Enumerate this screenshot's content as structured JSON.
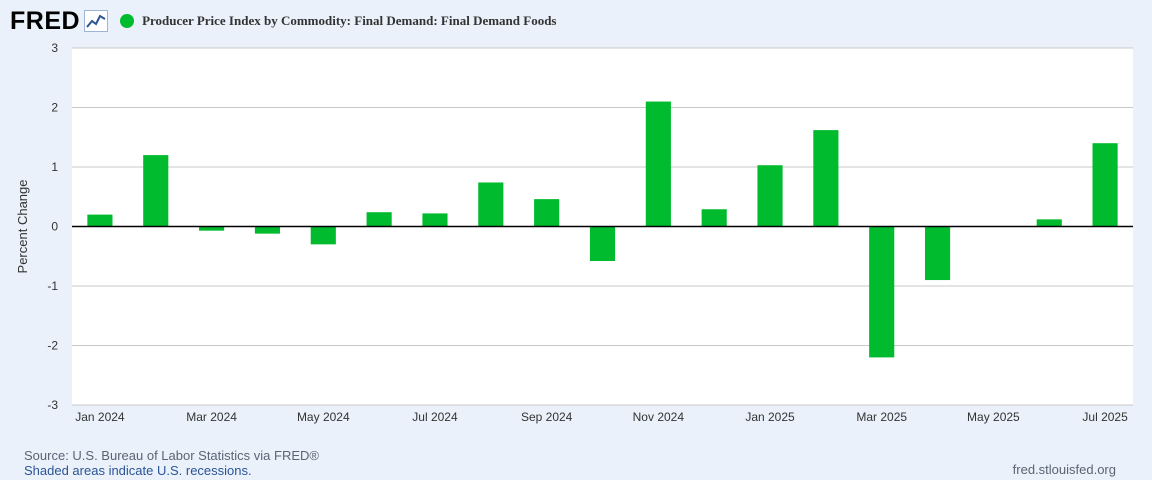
{
  "header": {
    "logo_text": "FRED",
    "series_title": "Producer Price Index by Commodity: Final Demand: Final Demand Foods"
  },
  "colors": {
    "bar": "#00bb2d",
    "legend": "#00bb2d"
  },
  "footer": {
    "source": "Source: U.S. Bureau of Labor Statistics via FRED®",
    "recessions": "Shaded areas indicate U.S. recessions.",
    "url": "fred.stlouisfed.org"
  },
  "chart_data": {
    "type": "bar",
    "title": "Producer Price Index by Commodity: Final Demand: Final Demand Foods",
    "ylabel": "Percent Change",
    "xlabel": "",
    "ylim": [
      -3,
      3
    ],
    "yticks": [
      -3,
      -2,
      -1,
      0,
      1,
      2,
      3
    ],
    "grid": true,
    "categories": [
      "Jan 2024",
      "Feb 2024",
      "Mar 2024",
      "Apr 2024",
      "May 2024",
      "Jun 2024",
      "Jul 2024",
      "Aug 2024",
      "Sep 2024",
      "Oct 2024",
      "Nov 2024",
      "Dec 2024",
      "Jan 2025",
      "Feb 2025",
      "Mar 2025",
      "Apr 2025",
      "May 2025",
      "Jun 2025",
      "Jul 2025"
    ],
    "xtick_labels": [
      "Jan 2024",
      "Mar 2024",
      "May 2024",
      "Jul 2024",
      "Sep 2024",
      "Nov 2024",
      "Jan 2025",
      "Mar 2025",
      "May 2025",
      "Jul 2025"
    ],
    "values": [
      0.2,
      1.2,
      -0.07,
      -0.12,
      -0.3,
      0.24,
      0.22,
      0.74,
      0.46,
      -0.58,
      2.1,
      0.29,
      1.03,
      1.62,
      -2.2,
      -0.9,
      0.0,
      0.12,
      1.4
    ]
  }
}
